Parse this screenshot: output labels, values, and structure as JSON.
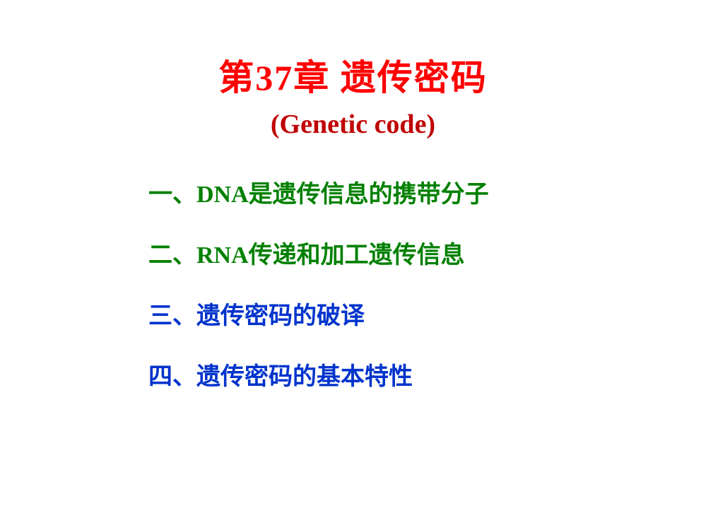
{
  "title": {
    "text": "第37章 遗传密码",
    "color": "#ff0000",
    "fontsize": 50
  },
  "subtitle": {
    "text": "(Genetic code)",
    "color": "#c00000",
    "fontsize": 38
  },
  "items": [
    {
      "text": "一、DNA是遗传信息的携带分子",
      "color": "#008000"
    },
    {
      "text": "二、RNA传递和加工遗传信息",
      "color": "#008000"
    },
    {
      "text": "三、遗传密码的破译",
      "color": "#0033cc"
    },
    {
      "text": "四、遗传密码的基本特性",
      "color": "#0033cc"
    }
  ],
  "item_fontsize": 34,
  "item_spacing": 86,
  "background_color": "#ffffff"
}
